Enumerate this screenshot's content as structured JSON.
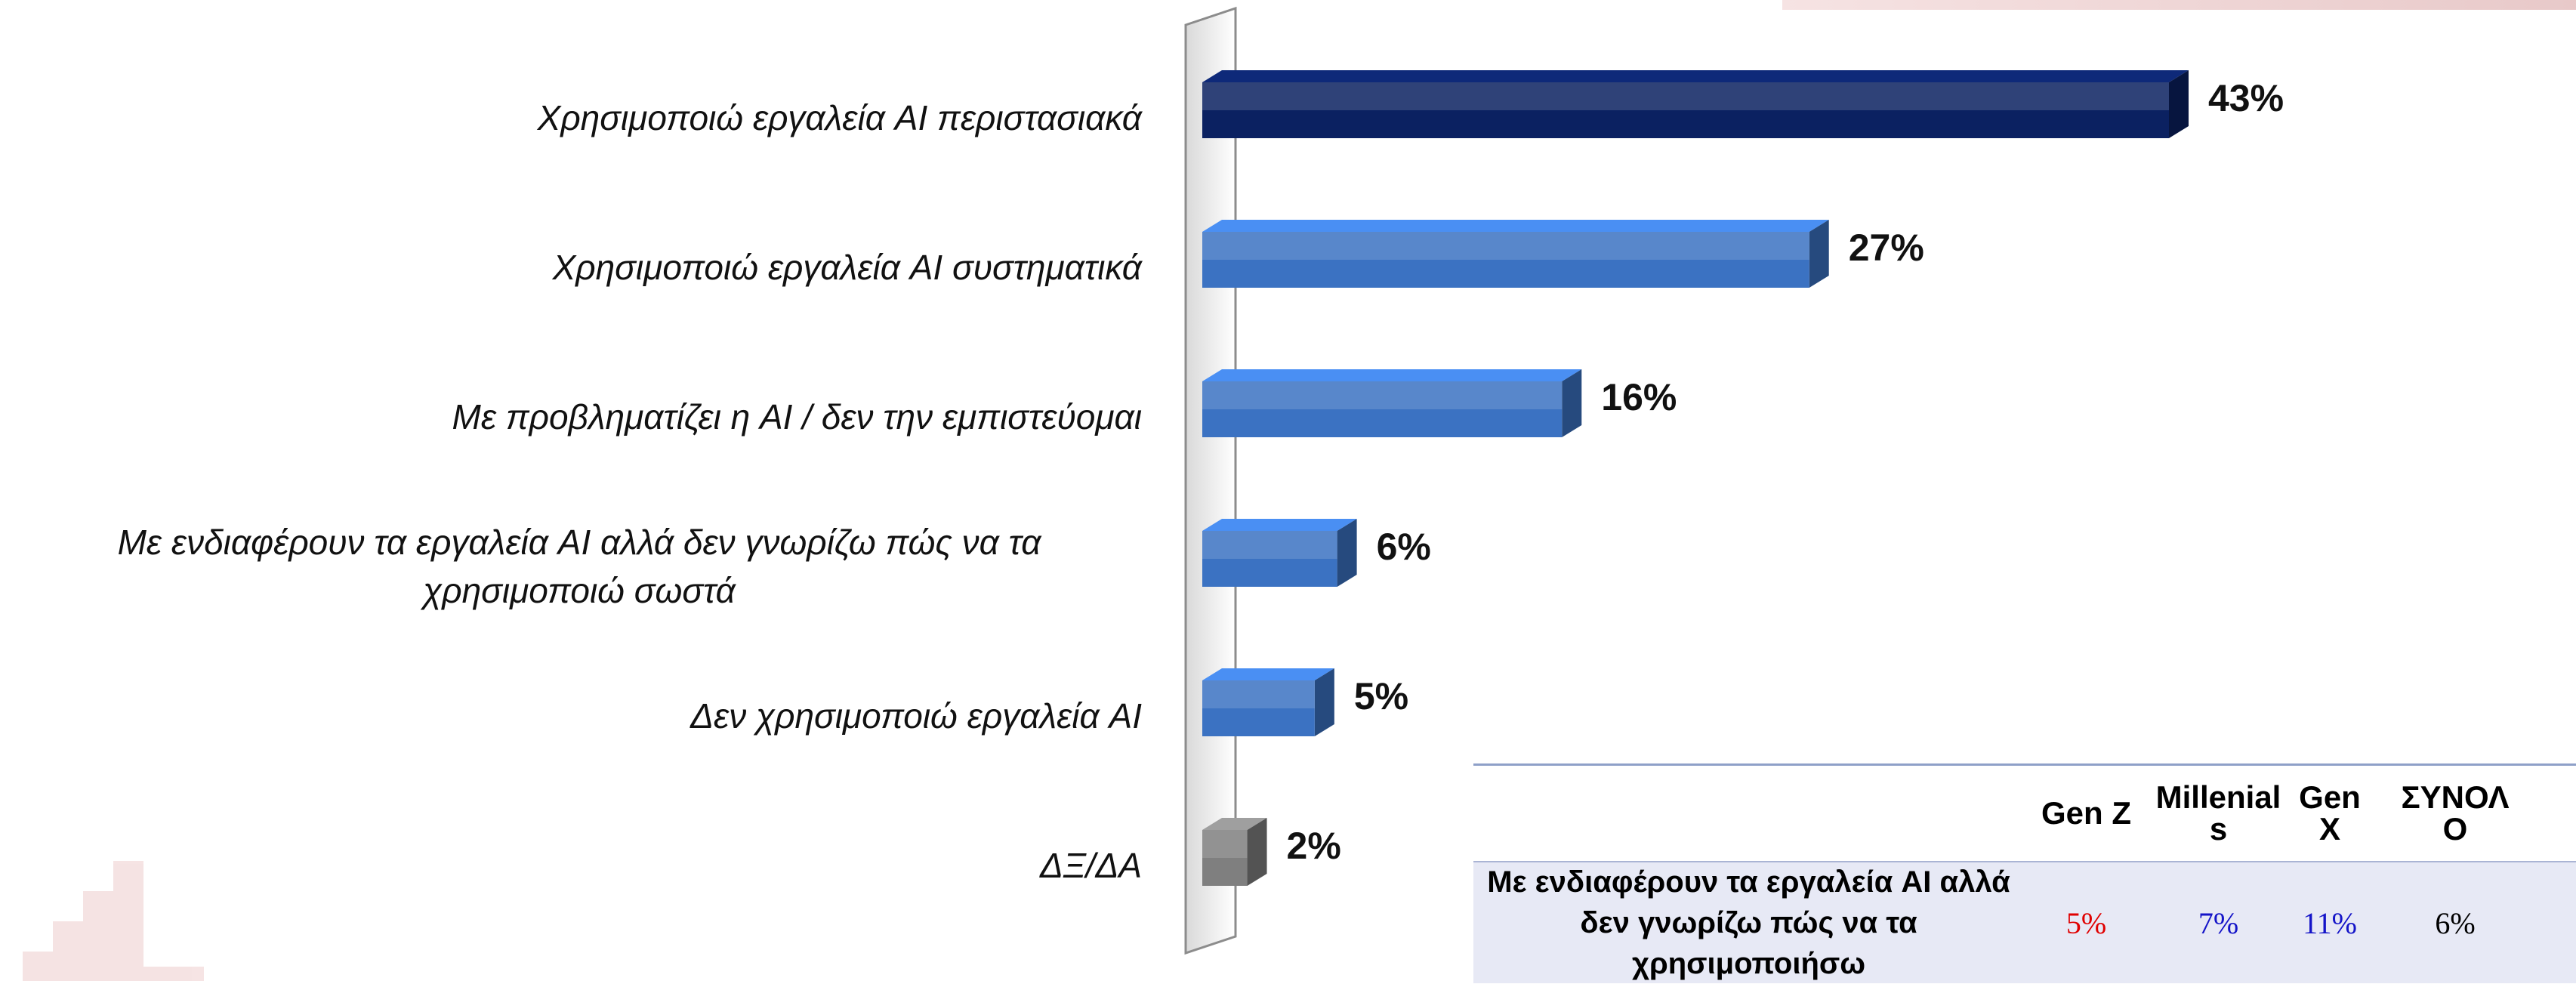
{
  "chart_data": {
    "type": "bar",
    "orientation": "horizontal",
    "categories": [
      "Χρησιμοποιώ εργαλεία AI περιστασιακά",
      "Χρησιμοποιώ εργαλεία AI συστηματικά",
      "Με προβληματίζει η AI / δεν την εμπιστεύομαι",
      "Με ενδιαφέρουν τα εργαλεία AI αλλά δεν γνωρίζω πώς να τα χρησιμοποιώ σωστά",
      "Δεν χρησιμοποιώ εργαλεία AI",
      "ΔΞ/ΔΑ"
    ],
    "values": [
      43,
      27,
      16,
      6,
      5,
      2
    ],
    "value_labels": [
      "43%",
      "27%",
      "16%",
      "6%",
      "5%",
      "2%"
    ],
    "colors": [
      "#0b2161",
      "#3b72c2",
      "#3b72c2",
      "#3b72c2",
      "#3b72c2",
      "#7f7f7f"
    ]
  },
  "table": {
    "header": [
      "Gen Z",
      "Millenials",
      "Gen X",
      "ΣΥΝΟΛΟ"
    ],
    "rows": [
      {
        "label": "Με ενδιαφέρουν τα εργαλεία AI αλλά δεν γνωρίζω πώς να τα χρησιμοποιήσω",
        "cells": [
          "5%",
          "7%",
          "11%",
          "6%"
        ],
        "colors": [
          "#e00000",
          "#1414c8",
          "#1414c8",
          "#000000"
        ]
      }
    ]
  }
}
